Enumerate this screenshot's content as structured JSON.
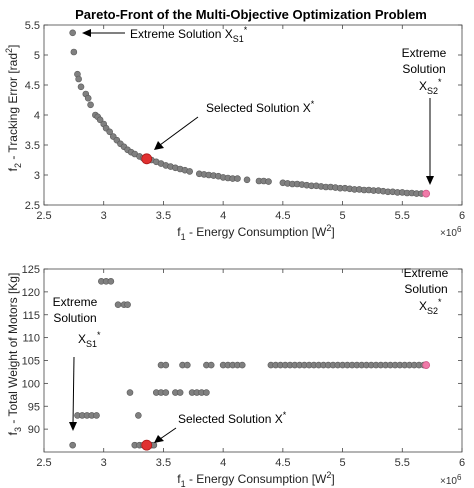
{
  "chart_data": [
    {
      "type": "scatter",
      "title": "Pareto-Front of the Multi-Objective Optimization Problem",
      "xlabel": {
        "main": "f",
        "sub": "1",
        "rest": " - Energy Consumption [W",
        "sup": "2",
        "end": "]"
      },
      "ylabel": {
        "main": "f",
        "sub": "2",
        "rest": " - Tracking Error [rad",
        "sup": "2",
        "end": "]"
      },
      "x_multiplier": {
        "base": "×10",
        "exp": "6"
      },
      "xlim": [
        2.5,
        6
      ],
      "ylim": [
        2.5,
        5.5
      ],
      "xticks": [
        2.5,
        3,
        3.5,
        4,
        4.5,
        5,
        5.5,
        6
      ],
      "yticks": [
        2.5,
        3,
        3.5,
        4,
        4.5,
        5,
        5.5
      ],
      "xtick_labels": [
        "2.5",
        "3",
        "3.5",
        "4",
        "4.5",
        "5",
        "5.5",
        "6"
      ],
      "ytick_labels": [
        "2.5",
        "3",
        "3.5",
        "4",
        "4.5",
        "5",
        "5.5"
      ],
      "grid": false,
      "series": [
        {
          "points": [
            [
              2.74,
              5.37
            ],
            [
              2.75,
              5.05
            ],
            [
              2.78,
              4.68
            ],
            [
              2.79,
              4.6
            ],
            [
              2.81,
              4.47
            ],
            [
              2.85,
              4.35
            ],
            [
              2.87,
              4.28
            ],
            [
              2.89,
              4.17
            ],
            [
              2.93,
              4.0
            ],
            [
              2.95,
              3.97
            ],
            [
              2.97,
              3.92
            ],
            [
              3.0,
              3.85
            ],
            [
              3.02,
              3.78
            ],
            [
              3.05,
              3.72
            ],
            [
              3.08,
              3.64
            ],
            [
              3.11,
              3.58
            ],
            [
              3.14,
              3.52
            ],
            [
              3.17,
              3.47
            ],
            [
              3.2,
              3.42
            ],
            [
              3.23,
              3.38
            ],
            [
              3.26,
              3.35
            ],
            [
              3.3,
              3.31
            ],
            [
              3.33,
              3.28
            ],
            [
              3.36,
              3.26
            ],
            [
              3.4,
              3.25
            ],
            [
              3.44,
              3.22
            ],
            [
              3.48,
              3.19
            ],
            [
              3.52,
              3.16
            ],
            [
              3.56,
              3.14
            ],
            [
              3.6,
              3.12
            ],
            [
              3.64,
              3.1
            ],
            [
              3.68,
              3.08
            ],
            [
              3.72,
              3.06
            ],
            [
              3.8,
              3.02
            ],
            [
              3.84,
              3.01
            ],
            [
              3.88,
              3.0
            ],
            [
              3.92,
              2.99
            ],
            [
              3.96,
              2.98
            ],
            [
              4.0,
              2.96
            ],
            [
              4.04,
              2.95
            ],
            [
              4.08,
              2.94
            ],
            [
              4.12,
              2.94
            ],
            [
              4.2,
              2.92
            ],
            [
              4.3,
              2.9
            ],
            [
              4.34,
              2.9
            ],
            [
              4.38,
              2.89
            ],
            [
              4.5,
              2.87
            ],
            [
              4.54,
              2.86
            ],
            [
              4.58,
              2.85
            ],
            [
              4.62,
              2.85
            ],
            [
              4.66,
              2.84
            ],
            [
              4.7,
              2.83
            ],
            [
              4.74,
              2.82
            ],
            [
              4.78,
              2.82
            ],
            [
              4.82,
              2.81
            ],
            [
              4.86,
              2.8
            ],
            [
              4.9,
              2.8
            ],
            [
              4.94,
              2.79
            ],
            [
              4.98,
              2.78
            ],
            [
              5.02,
              2.78
            ],
            [
              5.06,
              2.77
            ],
            [
              5.1,
              2.76
            ],
            [
              5.14,
              2.76
            ],
            [
              5.18,
              2.75
            ],
            [
              5.22,
              2.75
            ],
            [
              5.26,
              2.74
            ],
            [
              5.3,
              2.74
            ],
            [
              5.34,
              2.73
            ],
            [
              5.38,
              2.72
            ],
            [
              5.42,
              2.72
            ],
            [
              5.46,
              2.71
            ],
            [
              5.5,
              2.71
            ],
            [
              5.54,
              2.7
            ],
            [
              5.58,
              2.7
            ],
            [
              5.62,
              2.69
            ],
            [
              5.66,
              2.69
            ]
          ]
        }
      ],
      "highlights": [
        {
          "label": "selected",
          "x": 3.36,
          "y": 3.27,
          "color": "#e03030"
        },
        {
          "label": "extreme-s2",
          "x": 5.7,
          "y": 2.69,
          "color": "#f07aa8"
        }
      ],
      "annotations": [
        {
          "text": "Extreme Solution X",
          "sub": "S1",
          "sup": "*"
        },
        {
          "text": "Selected Solution X",
          "sup": "*"
        },
        {
          "lines": [
            "Extreme",
            "Solution",
            "X"
          ],
          "sub": "S2",
          "sup": "*"
        }
      ]
    },
    {
      "type": "scatter",
      "xlabel": {
        "main": "f",
        "sub": "1",
        "rest": " - Energy Consumption [W",
        "sup": "2",
        "end": "]"
      },
      "ylabel": {
        "main": "f",
        "sub": "3",
        "rest": " - Total Weight of Motors [Kg]"
      },
      "x_multiplier": {
        "base": "×10",
        "exp": "6"
      },
      "xlim": [
        2.5,
        6
      ],
      "ylim": [
        85,
        125
      ],
      "xticks": [
        2.5,
        3,
        3.5,
        4,
        4.5,
        5,
        5.5,
        6
      ],
      "yticks": [
        90,
        95,
        100,
        105,
        110,
        115,
        120,
        125
      ],
      "xtick_labels": [
        "2.5",
        "3",
        "3.5",
        "4",
        "4.5",
        "5",
        "5.5",
        "6"
      ],
      "ytick_labels": [
        "90",
        "95",
        "100",
        "105",
        "110",
        "115",
        "120",
        "125"
      ],
      "grid": false,
      "series": [
        {
          "points": [
            [
              2.74,
              86.5
            ],
            [
              2.78,
              93
            ],
            [
              2.82,
              93
            ],
            [
              2.86,
              93
            ],
            [
              2.9,
              93
            ],
            [
              2.94,
              93
            ],
            [
              2.98,
              122.3
            ],
            [
              3.02,
              122.3
            ],
            [
              3.06,
              122.3
            ],
            [
              3.12,
              117.2
            ],
            [
              3.17,
              117.2
            ],
            [
              3.2,
              117.2
            ],
            [
              3.22,
              98
            ],
            [
              3.26,
              86.5
            ],
            [
              3.29,
              93
            ],
            [
              3.3,
              86.5
            ],
            [
              3.33,
              86.5
            ],
            [
              3.4,
              86.5
            ],
            [
              3.42,
              86.5
            ],
            [
              3.44,
              98
            ],
            [
              3.48,
              98
            ],
            [
              3.52,
              98
            ],
            [
              3.48,
              104
            ],
            [
              3.52,
              104
            ],
            [
              3.6,
              98
            ],
            [
              3.64,
              98
            ],
            [
              3.66,
              104
            ],
            [
              3.7,
              104
            ],
            [
              3.74,
              98
            ],
            [
              3.78,
              98
            ],
            [
              3.82,
              98
            ],
            [
              3.86,
              98
            ],
            [
              3.86,
              104
            ],
            [
              3.9,
              104
            ],
            [
              4.0,
              104
            ],
            [
              4.04,
              104
            ],
            [
              4.08,
              104
            ],
            [
              4.12,
              104
            ],
            [
              4.16,
              104
            ],
            [
              4.4,
              104
            ],
            [
              4.44,
              104
            ],
            [
              4.48,
              104
            ],
            [
              4.52,
              104
            ],
            [
              4.56,
              104
            ],
            [
              4.6,
              104
            ],
            [
              4.64,
              104
            ],
            [
              4.68,
              104
            ],
            [
              4.72,
              104
            ],
            [
              4.76,
              104
            ],
            [
              4.8,
              104
            ],
            [
              4.84,
              104
            ],
            [
              4.88,
              104
            ],
            [
              4.92,
              104
            ],
            [
              4.96,
              104
            ],
            [
              5.0,
              104
            ],
            [
              5.04,
              104
            ],
            [
              5.08,
              104
            ],
            [
              5.12,
              104
            ],
            [
              5.16,
              104
            ],
            [
              5.2,
              104
            ],
            [
              5.24,
              104
            ],
            [
              5.28,
              104
            ],
            [
              5.32,
              104
            ],
            [
              5.36,
              104
            ],
            [
              5.4,
              104
            ],
            [
              5.44,
              104
            ],
            [
              5.48,
              104
            ],
            [
              5.52,
              104
            ],
            [
              5.56,
              104
            ],
            [
              5.6,
              104
            ],
            [
              5.64,
              104
            ],
            [
              5.68,
              104
            ]
          ]
        }
      ],
      "highlights": [
        {
          "label": "selected",
          "x": 3.36,
          "y": 86.5,
          "color": "#e03030"
        },
        {
          "label": "extreme-s2",
          "x": 5.7,
          "y": 104,
          "color": "#f07aa8"
        }
      ],
      "annotations": [
        {
          "lines": [
            "Extreme",
            "Solution",
            "X"
          ],
          "sub": "S1",
          "sup": "*"
        },
        {
          "text": "Selected Solution X",
          "sup": "*"
        },
        {
          "lines": [
            "Extreme",
            "Solution",
            "X"
          ],
          "sub": "S2",
          "sup": "*"
        }
      ]
    }
  ],
  "colors": {
    "marker": "#808080",
    "marker_edge": "#5a5a5a"
  }
}
